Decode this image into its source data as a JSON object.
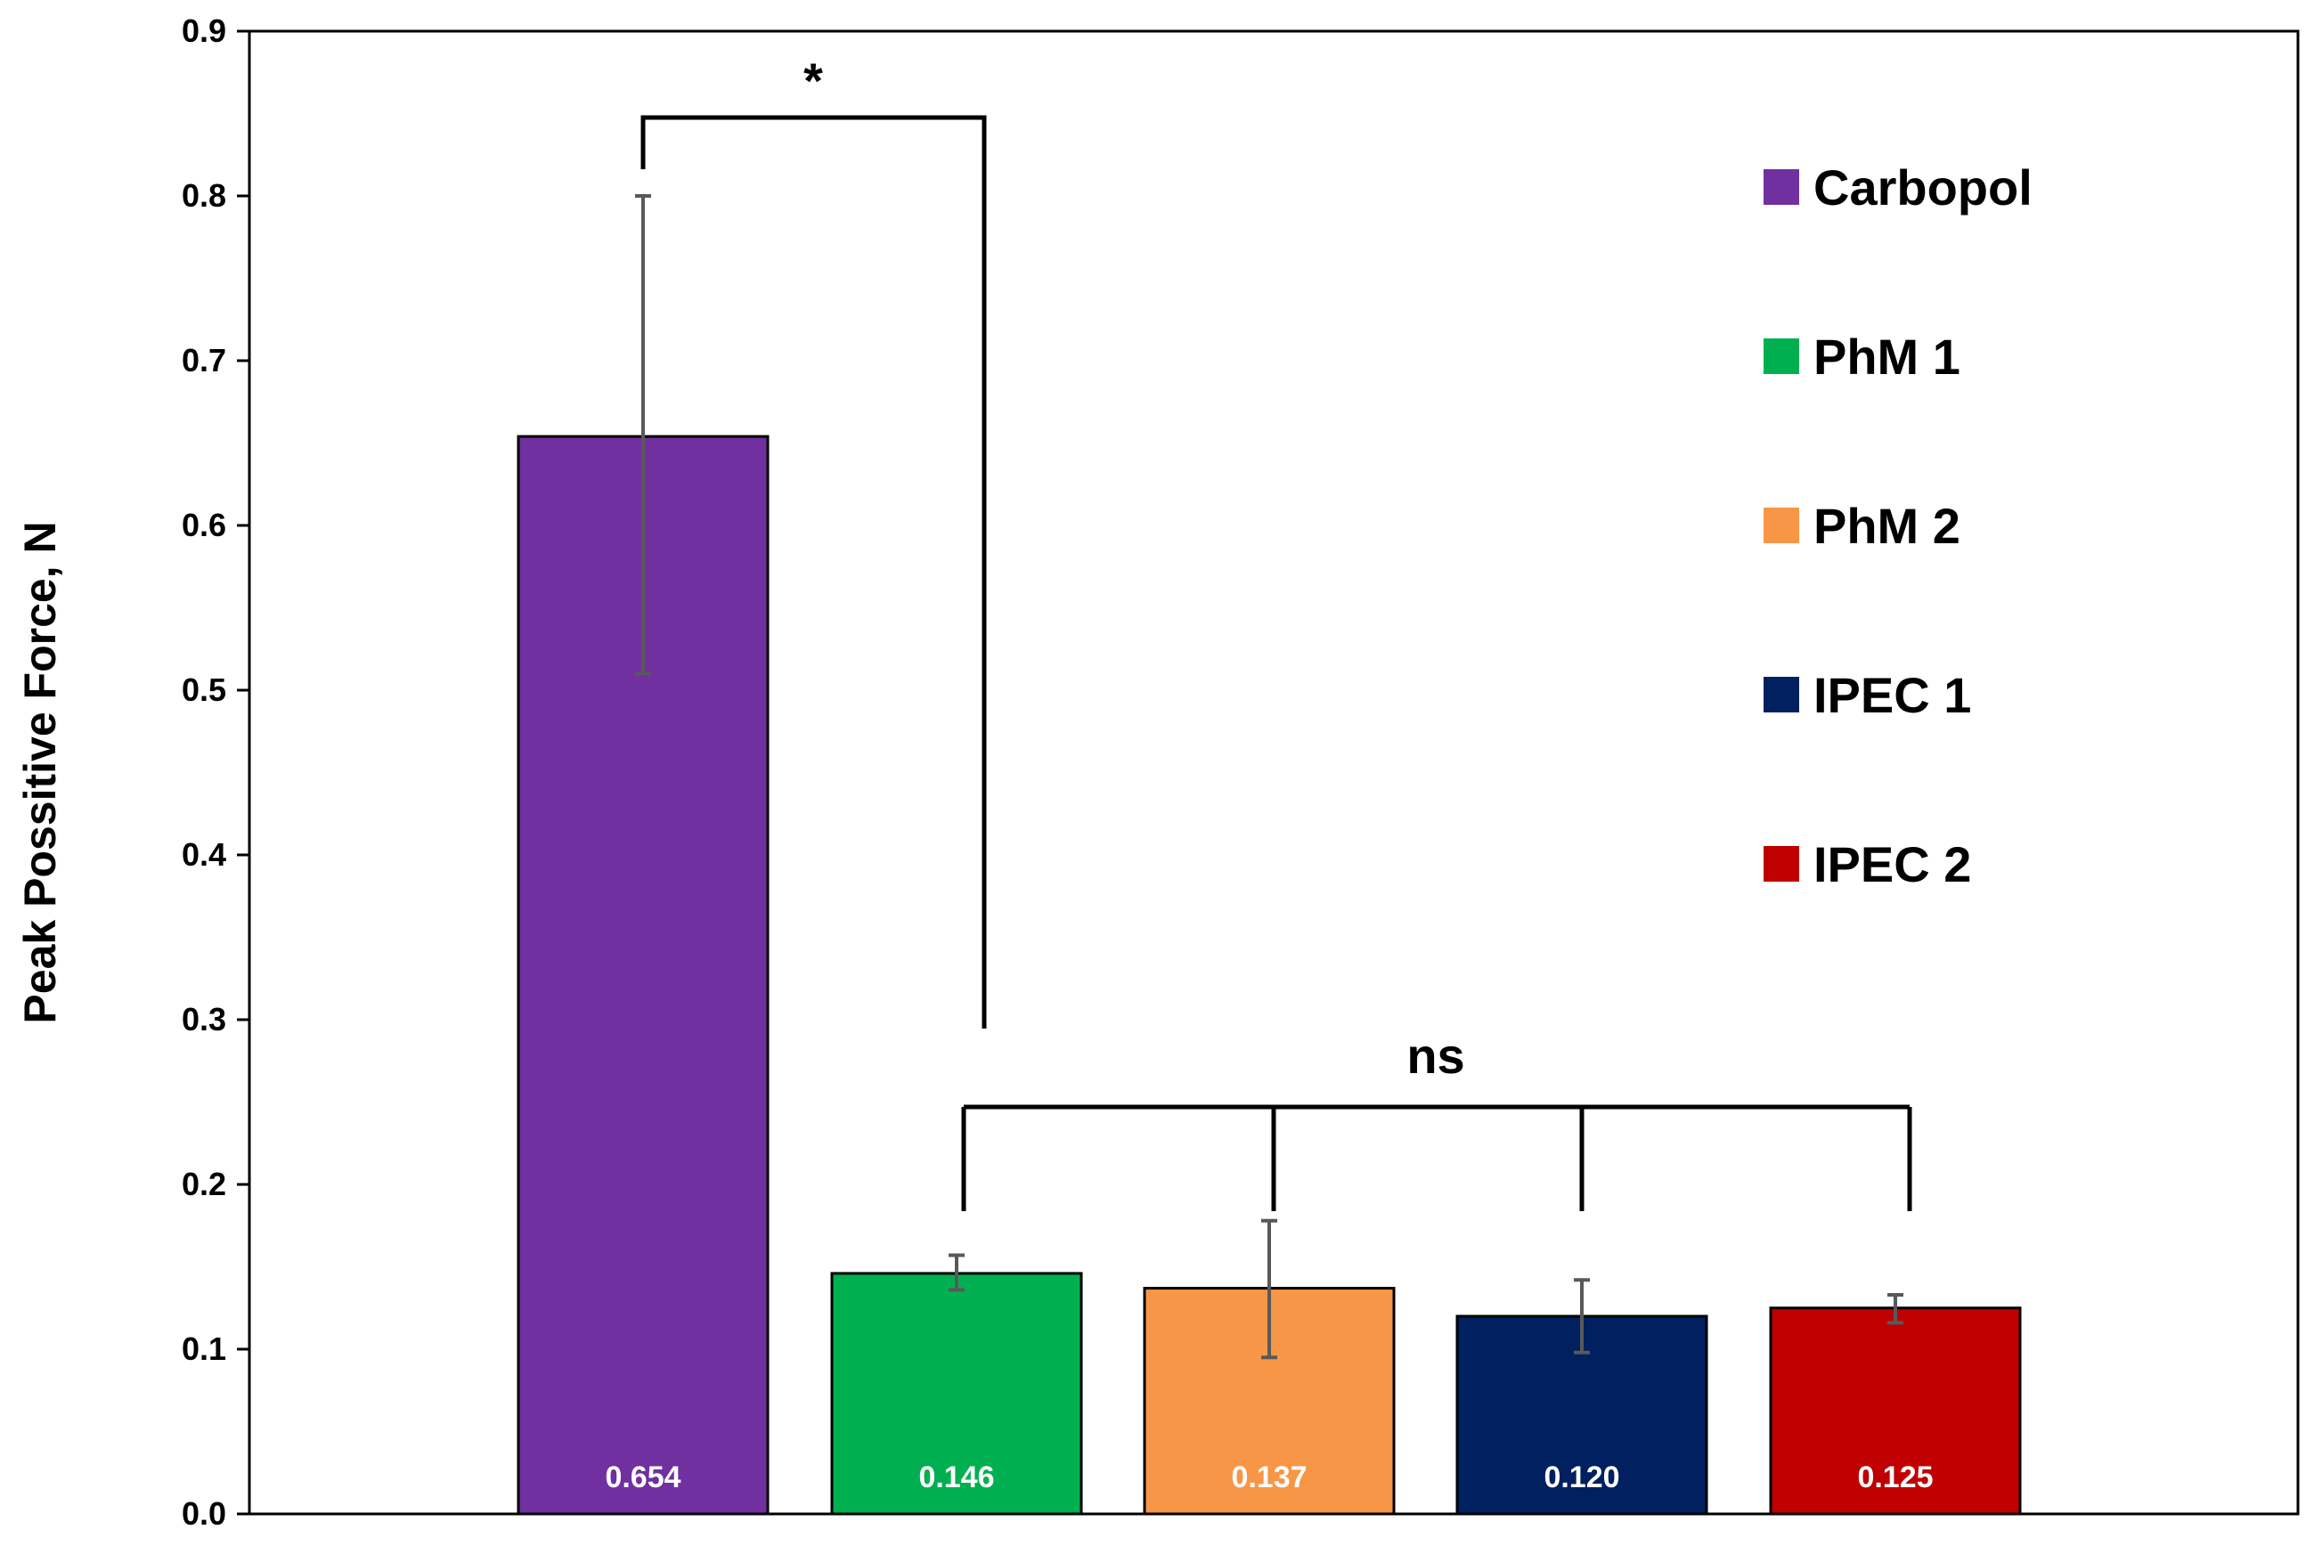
{
  "chart_data": {
    "type": "bar",
    "title": "",
    "xlabel": "",
    "ylabel": "Peak Possitive Force, N",
    "ylim": [
      0,
      0.9
    ],
    "yticks": [
      "0.0",
      "0.1",
      "0.2",
      "0.3",
      "0.4",
      "0.5",
      "0.6",
      "0.7",
      "0.8",
      "0.9"
    ],
    "grid": false,
    "legend_position": "top-right",
    "categories": [
      "Carbopol",
      "PhM 1",
      "PhM 2",
      "IPEC 1",
      "IPEC 2"
    ],
    "values": [
      0.654,
      0.146,
      0.137,
      0.12,
      0.125
    ],
    "value_labels": [
      "0.654",
      "0.146",
      "0.137",
      "0.120",
      "0.125"
    ],
    "error_bars": [
      {
        "low": 0.51,
        "high": 0.8
      },
      {
        "low": 0.136,
        "high": 0.157
      },
      {
        "low": 0.095,
        "high": 0.178
      },
      {
        "low": 0.098,
        "high": 0.142
      },
      {
        "low": 0.116,
        "high": 0.133
      }
    ],
    "colors": [
      "#7030A0",
      "#00B050",
      "#F79646",
      "#002060",
      "#C00000"
    ],
    "significance": [
      {
        "label": "*",
        "groups": [
          "Carbopol",
          "PhM 1"
        ]
      },
      {
        "label": "ns",
        "groups": [
          "PhM 1",
          "PhM 2",
          "IPEC 1",
          "IPEC 2"
        ]
      }
    ]
  }
}
